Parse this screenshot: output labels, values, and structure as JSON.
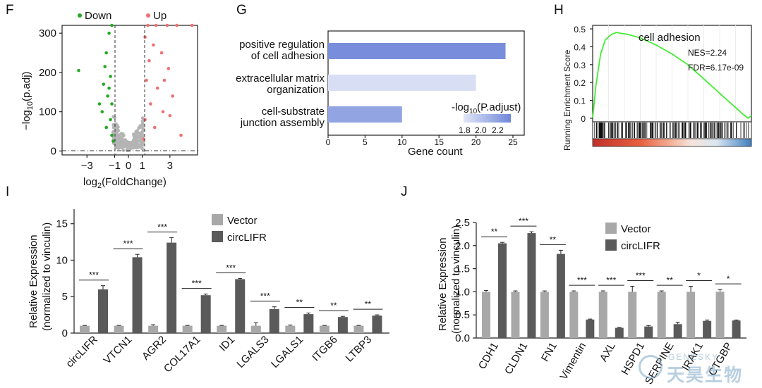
{
  "panel_labels": {
    "F": "F",
    "G": "G",
    "H": "H",
    "I": "I",
    "J": "J"
  },
  "volcano": {
    "legend_down": "Down",
    "legend_up": "Up",
    "xlabel_main": "log",
    "xlabel_sub": "2",
    "xlabel_tail": "(FoldChange)",
    "ylabel_main": "−log",
    "ylabel_sub": "10",
    "ylabel_tail": "(p.adj)",
    "x_ticks": [
      "−3",
      "−1",
      "0",
      "1",
      "3"
    ],
    "y_ticks": [
      "0",
      "100",
      "200",
      "300"
    ],
    "colors": {
      "down": "#22aa22",
      "up": "#f07070",
      "ns": "#b4b4b4"
    }
  },
  "go": {
    "xlabel": "Gene count",
    "x_ticks": [
      "0",
      "5",
      "10",
      "15",
      "20",
      "25"
    ],
    "legend_title_main": "-log",
    "legend_title_sub": "10",
    "legend_title_tail": "(P.adjust)",
    "legend_ticks": [
      "1.8",
      "2.0",
      "2.2"
    ]
  },
  "gsea": {
    "title": "cell adhesion",
    "ylabel": "Running Enrichment Score",
    "y_ticks": [
      "0",
      "0.1",
      "0.2",
      "0.3",
      "0.4",
      "0.5"
    ],
    "nes": "NES=2.24",
    "fdr": "FDR=6.17e-09",
    "curve_color": "#44ee33"
  },
  "bar_i": {
    "ylabel1": "Relative Expression",
    "ylabel2": "(normalized to vinculin)",
    "y_ticks": [
      "0",
      "5",
      "10",
      "15"
    ],
    "legend": [
      "Vector",
      "circLIFR"
    ],
    "colors": {
      "vector": "#a8a8a8",
      "circ": "#5a5a5a"
    },
    "sig": [
      "***",
      "***",
      "***",
      "***",
      "***",
      "***",
      "**",
      "**",
      "**"
    ]
  },
  "bar_j": {
    "ylabel1": "Relative Expression",
    "ylabel2": "(normalized to vinculin)",
    "y_ticks": [
      "0.0",
      "0.5",
      "1.0",
      "1.5",
      "2.0",
      "2.5"
    ],
    "legend": [
      "Vector",
      "circLIFR"
    ],
    "colors": {
      "vector": "#a8a8a8",
      "circ": "#5a5a5a"
    },
    "sig": [
      "**",
      "***",
      "**",
      "***",
      "***",
      "***",
      "**",
      "*",
      "*"
    ]
  },
  "watermark": {
    "en": "GENESKY",
    "cn": "天昊生物"
  },
  "chart_data": [
    {
      "type": "scatter",
      "title": "",
      "xlabel": "log2(FoldChange)",
      "ylabel": "−log10(p.adj)",
      "xlim": [
        -4.8,
        5.0
      ],
      "ylim": [
        -10,
        320
      ],
      "thresholds": {
        "x": [
          -1,
          1
        ],
        "y": 1.3
      },
      "series": [
        {
          "name": "Down",
          "points": [
            [
              -3.6,
              205
            ],
            [
              -1.2,
              320
            ],
            [
              -1.4,
              300
            ],
            [
              -1.6,
              250
            ],
            [
              -1.3,
              190
            ],
            [
              -1.8,
              170
            ],
            [
              -1.5,
              140
            ],
            [
              -1.2,
              120
            ],
            [
              -1.9,
              100
            ],
            [
              -1.3,
              80
            ],
            [
              -1.6,
              60
            ],
            [
              -1.2,
              40
            ],
            [
              -1.1,
              25
            ],
            [
              -2.1,
              120
            ],
            [
              -1.7,
              215
            ],
            [
              -1.4,
              160
            ]
          ]
        },
        {
          "name": "Up",
          "points": [
            [
              1.4,
              320
            ],
            [
              2.0,
              320
            ],
            [
              2.8,
              320
            ],
            [
              3.5,
              320
            ],
            [
              1.2,
              290
            ],
            [
              1.8,
              270
            ],
            [
              2.4,
              250
            ],
            [
              1.5,
              230
            ],
            [
              2.9,
              210
            ],
            [
              1.3,
              180
            ],
            [
              2.1,
              160
            ],
            [
              3.2,
              140
            ],
            [
              1.6,
              120
            ],
            [
              2.5,
              100
            ],
            [
              1.2,
              80
            ],
            [
              1.9,
              60
            ],
            [
              3.8,
              40
            ],
            [
              1.1,
              30
            ],
            [
              4.6,
              320
            ],
            [
              2.6,
              180
            ],
            [
              3.0,
              90
            ]
          ]
        }
      ]
    },
    {
      "type": "bar",
      "orientation": "horizontal",
      "xlabel": "Gene count",
      "xlim": [
        0,
        25
      ],
      "categories": [
        "positive regulation of cell adhesion",
        "extracellular matrix organization",
        "cell-substrate junction assembly"
      ],
      "values": [
        24,
        20,
        10
      ],
      "color_values": [
        2.3,
        1.75,
        2.15
      ],
      "color_label": "-log10(P.adjust)",
      "color_range": [
        1.7,
        2.35
      ]
    },
    {
      "type": "line",
      "title": "cell adhesion",
      "ylabel": "Running Enrichment Score",
      "ylim": [
        -0.02,
        0.52
      ],
      "x": [
        0,
        0.02,
        0.05,
        0.08,
        0.12,
        0.15,
        0.18,
        0.22,
        0.3,
        0.4,
        0.5,
        0.6,
        0.7,
        0.8,
        0.9,
        0.95,
        0.98,
        1.0
      ],
      "values": [
        0,
        0.18,
        0.36,
        0.44,
        0.47,
        0.48,
        0.475,
        0.47,
        0.45,
        0.41,
        0.36,
        0.3,
        0.22,
        0.14,
        0.06,
        0.02,
        0.0,
        0.015
      ],
      "annotations": [
        "NES=2.24",
        "FDR=6.17e-09"
      ]
    },
    {
      "type": "bar",
      "ylabel": "Relative Expression (normalized to vinculin)",
      "ylim": [
        0,
        17
      ],
      "categories": [
        "circLIFR",
        "VTCN1",
        "AGR2",
        "COL17A1",
        "ID1",
        "LGALS3",
        "LGALS1",
        "ITGB6",
        "LTBP3"
      ],
      "series": [
        {
          "name": "Vector",
          "values": [
            1.0,
            1.0,
            1.0,
            1.0,
            1.0,
            1.0,
            1.0,
            1.0,
            1.0
          ],
          "errors": [
            0.05,
            0.05,
            0.15,
            0.05,
            0.05,
            0.4,
            0.1,
            0.05,
            0.05
          ]
        },
        {
          "name": "circLIFR",
          "values": [
            6.0,
            10.4,
            12.4,
            5.2,
            7.4,
            3.3,
            2.6,
            2.2,
            2.4
          ],
          "errors": [
            0.5,
            0.4,
            0.7,
            0.15,
            0.1,
            0.3,
            0.15,
            0.1,
            0.1
          ]
        }
      ],
      "significance": [
        "***",
        "***",
        "***",
        "***",
        "***",
        "***",
        "**",
        "**",
        "**"
      ]
    },
    {
      "type": "bar",
      "ylabel": "Relative Expression (normalized to vinculin)",
      "ylim": [
        0,
        2.5
      ],
      "categories": [
        "CDH1",
        "CLDN1",
        "FN1",
        "Vimentin",
        "AXL",
        "HSPD1",
        "SERPINE",
        "IRAK1",
        "CTGBP"
      ],
      "series": [
        {
          "name": "Vector",
          "values": [
            1.0,
            1.0,
            1.0,
            1.0,
            1.0,
            1.0,
            1.0,
            1.0,
            1.0
          ],
          "errors": [
            0.03,
            0.02,
            0.02,
            0.02,
            0.02,
            0.12,
            0.02,
            0.12,
            0.05
          ]
        },
        {
          "name": "circLIFR",
          "values": [
            2.05,
            2.27,
            1.82,
            0.4,
            0.22,
            0.25,
            0.3,
            0.37,
            0.38
          ],
          "errors": [
            0.02,
            0.03,
            0.08,
            0.01,
            0.01,
            0.02,
            0.04,
            0.02,
            0.01
          ]
        }
      ],
      "significance": [
        "**",
        "***",
        "**",
        "***",
        "***",
        "***",
        "**",
        "*",
        "*"
      ]
    }
  ]
}
